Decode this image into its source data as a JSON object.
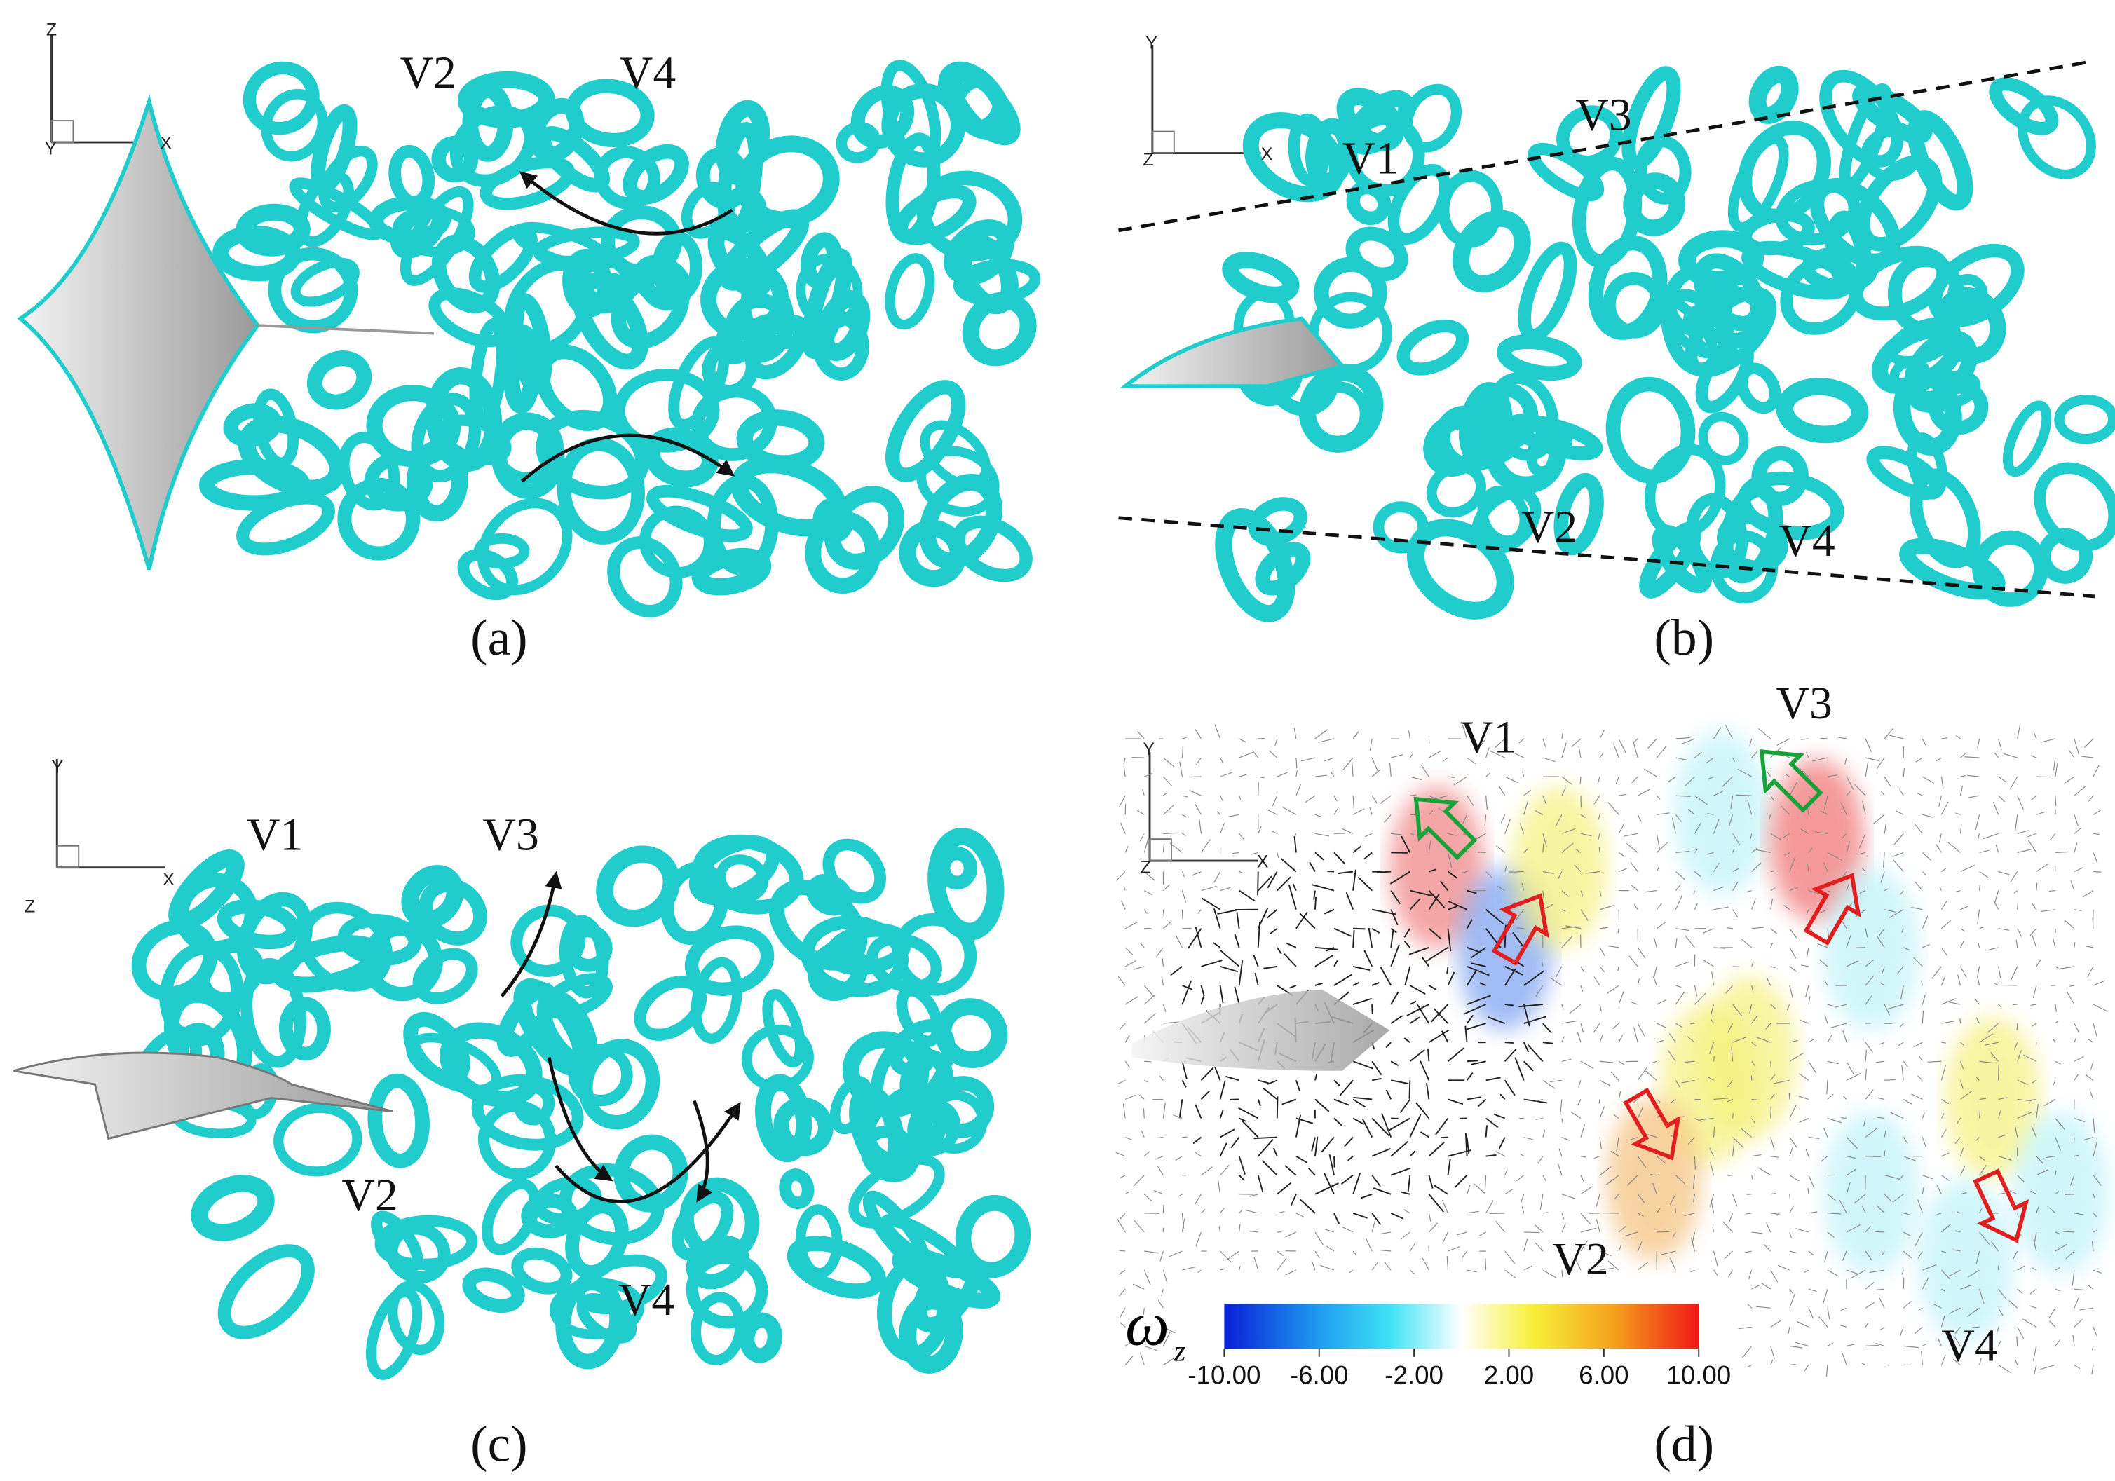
{
  "panels": [
    {
      "caption": "(a)",
      "axes": {
        "vertical": "Z",
        "horizontal": "X",
        "depth": "Y"
      },
      "labels": [
        "V2",
        "V4"
      ]
    },
    {
      "caption": "(b)",
      "axes": {
        "vertical": "Y",
        "horizontal": "X",
        "depth": "Z"
      },
      "labels": [
        "V1",
        "V3",
        "V2",
        "V4"
      ]
    },
    {
      "caption": "(c)",
      "axes": {
        "vertical": "Y",
        "horizontal": "X",
        "depth": "Z"
      },
      "labels": [
        "V1",
        "V3",
        "V2",
        "V4"
      ]
    },
    {
      "caption": "(d)",
      "axes": {
        "vertical": "Y",
        "horizontal": "X",
        "depth": "Z"
      },
      "labels": [
        "V1",
        "V3",
        "V2",
        "V4"
      ]
    }
  ],
  "colorbar": {
    "symbol": "ω",
    "subscript": "z",
    "range": [
      -10,
      10
    ],
    "ticks": [
      {
        "value": -10,
        "label": "-10.00"
      },
      {
        "value": -6,
        "label": "-6.00"
      },
      {
        "value": -2,
        "label": "-2.00"
      },
      {
        "value": 2,
        "label": "2.00"
      },
      {
        "value": 6,
        "label": "6.00"
      },
      {
        "value": 10,
        "label": "10.00"
      }
    ]
  }
}
